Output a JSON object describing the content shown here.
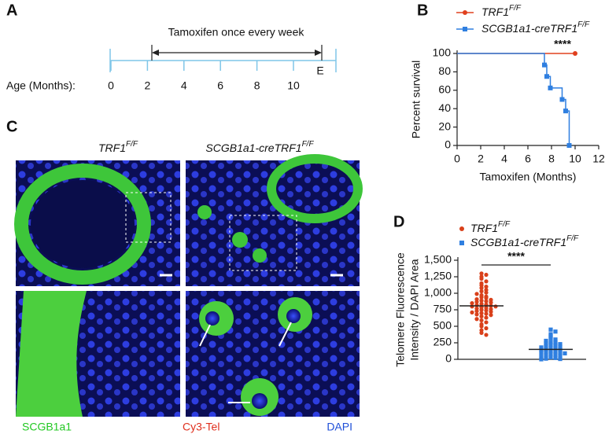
{
  "panel_labels": [
    "A",
    "B",
    "C",
    "D"
  ],
  "timeline": {
    "arrow_label": "Tamoxifen once every week",
    "axis_label": "Age (Months):",
    "ticks": [
      0,
      2,
      4,
      6,
      8,
      10
    ],
    "end_label": "E"
  },
  "images": {
    "columns": [
      {
        "name": "TRF1",
        "name_sup": "F/F"
      },
      {
        "name": "SCGB1a1-creTRF1",
        "name_sup": "F/F"
      }
    ],
    "stains": [
      {
        "name": "SCGB1a1",
        "color": "#22c822"
      },
      {
        "name": "Cy3-Tel",
        "color": "#e0301e"
      },
      {
        "name": "DAPI",
        "color": "#1f4fd8"
      }
    ]
  },
  "chart_data": [
    {
      "type": "line",
      "step": true,
      "xlabel": "Tamoxifen (Months)",
      "ylabel": "Percent survival",
      "xlim": [
        0,
        12
      ],
      "ylim": [
        0,
        100
      ],
      "xticks": [
        0,
        2,
        4,
        6,
        8,
        10,
        12
      ],
      "yticks": [
        0,
        20,
        40,
        60,
        80,
        100
      ],
      "annotation": "****",
      "series": [
        {
          "name": "TRF1",
          "name_sup": "F/F",
          "color": "#e0401e",
          "marker": "circle",
          "x": [
            0,
            10
          ],
          "values": [
            100,
            100
          ]
        },
        {
          "name": "SCGB1a1-creTRF1",
          "name_sup": "F/F",
          "color": "#2f7fe0",
          "marker": "square",
          "x": [
            0,
            7.4,
            7.6,
            7.9,
            8.9,
            9.2,
            9.5
          ],
          "values": [
            100,
            87.5,
            75,
            62.5,
            50,
            37.5,
            0
          ]
        }
      ]
    },
    {
      "type": "strip",
      "ylabel": [
        "Telomere Fluorescence",
        "Intensity / DAPI Area"
      ],
      "ylim": [
        0,
        1500
      ],
      "yticks": [
        0,
        250,
        500,
        750,
        {
          "value": 1000,
          "label": "1,000"
        },
        {
          "value": 1250,
          "label": "1,250"
        },
        {
          "value": 1500,
          "label": "1,500"
        }
      ],
      "annotation": "****",
      "series": [
        {
          "name": "TRF1",
          "name_sup": "F/F",
          "color": "#d9401a",
          "marker": "circle",
          "mean": 810,
          "values": [
            1300,
            1280,
            1250,
            1220,
            1180,
            1150,
            1120,
            1100,
            1080,
            1050,
            1030,
            1010,
            990,
            970,
            950,
            940,
            930,
            910,
            900,
            890,
            880,
            870,
            860,
            850,
            840,
            830,
            820,
            810,
            800,
            800,
            790,
            780,
            770,
            760,
            750,
            740,
            730,
            720,
            710,
            700,
            690,
            680,
            670,
            650,
            630,
            610,
            590,
            560,
            530,
            500,
            470,
            440,
            400,
            370
          ]
        },
        {
          "name": "SCGB1a1-creTRF1",
          "name_sup": "F/F",
          "color": "#2f7fe0",
          "marker": "square",
          "mean": 150,
          "values": [
            450,
            420,
            380,
            350,
            320,
            300,
            280,
            260,
            250,
            240,
            230,
            220,
            210,
            200,
            190,
            180,
            170,
            160,
            150,
            150,
            140,
            130,
            120,
            110,
            100,
            100,
            90,
            80,
            70,
            60,
            50,
            40,
            30,
            20,
            10,
            5,
            0
          ]
        }
      ]
    }
  ]
}
